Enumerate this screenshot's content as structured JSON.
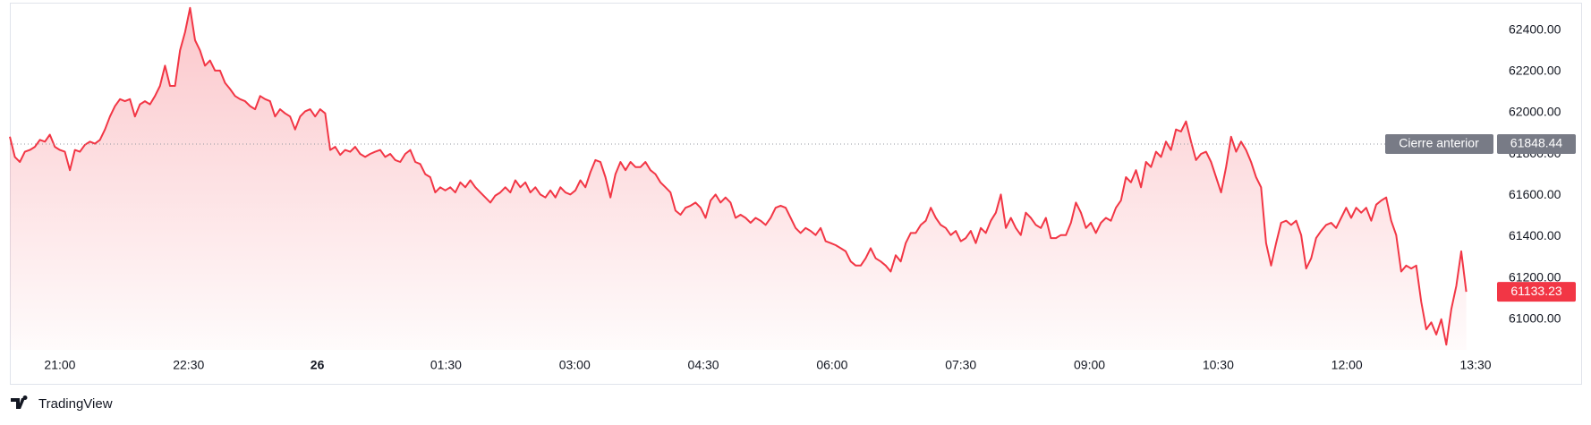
{
  "chart_data": {
    "type": "area",
    "color": "#f23645",
    "x": [
      1225,
      1228.5,
      1232,
      1235.5,
      1239,
      1242.5,
      1246,
      1249.5,
      1253,
      1256.5,
      1260,
      1263.5,
      1267,
      1270.5,
      1274,
      1277.5,
      1281,
      1284.5,
      1288,
      1291.5,
      1295,
      1298.5,
      1302,
      1305.5,
      1309,
      1312.5,
      1316,
      1319.5,
      1323,
      1326.5,
      1330,
      1333.5,
      1337,
      1340.5,
      1344,
      1347.5,
      1351,
      1354.5,
      1358,
      1361.5,
      1365,
      1368.5,
      1372,
      1375.5,
      1379,
      1382.5,
      1386,
      1389.5,
      1393,
      1396.5,
      1400,
      1403.5,
      1407,
      1410.5,
      1414,
      1417.5,
      1421,
      1424.5,
      1428,
      1431.5,
      1435,
      1438.5,
      1442,
      1445.5,
      1449,
      1452.5,
      1456,
      1459.5,
      1463,
      1466.5,
      1470,
      1473.5,
      1477,
      1480.5,
      1484,
      1487.5,
      1491,
      1494.5,
      1498,
      1501.5,
      1505,
      1508.5,
      1512,
      1515.5,
      1519,
      1522.5,
      1526,
      1529.5,
      1533,
      1536.5,
      1540,
      1543.5,
      1547,
      1550.5,
      1554,
      1557.5,
      1561,
      1564.5,
      1568,
      1571.5,
      1575,
      1578.5,
      1582,
      1585.5,
      1589,
      1592.5,
      1596,
      1599.5,
      1603,
      1606.5,
      1610,
      1613.5,
      1617,
      1620.5,
      1624,
      1627.5,
      1631,
      1634.5,
      1638,
      1641.5,
      1645,
      1648.5,
      1652,
      1655.5,
      1659,
      1662.5,
      1666,
      1669.5,
      1673,
      1676.5,
      1680,
      1683.5,
      1687,
      1690.5,
      1694,
      1697.5,
      1701,
      1704.5,
      1708,
      1711.5,
      1715,
      1718.5,
      1722,
      1725.5,
      1729,
      1732.5,
      1736,
      1739.5,
      1743,
      1746.5,
      1750,
      1753.5,
      1757,
      1760.5,
      1764,
      1767.5,
      1771,
      1774.5,
      1778,
      1781.5,
      1785,
      1788.5,
      1792,
      1795.5,
      1799,
      1802.5,
      1806,
      1809.5,
      1813,
      1816.5,
      1820,
      1823.5,
      1827,
      1830.5,
      1834,
      1837.5,
      1841,
      1844.5,
      1848,
      1851.5,
      1855,
      1858.5,
      1862,
      1865.5,
      1869,
      1872.5,
      1876,
      1879.5,
      1883,
      1886.5,
      1890,
      1893.5,
      1897,
      1900.5,
      1904,
      1907.5,
      1911,
      1914.5,
      1918,
      1921.5,
      1925,
      1928.5,
      1932,
      1935.5,
      1939,
      1942.5,
      1946,
      1949.5,
      1953,
      1956.5,
      1960,
      1963.5,
      1967,
      1970.5,
      1974,
      1977.5,
      1981,
      1984.5,
      1988,
      1991.5,
      1995,
      1998.5,
      2002,
      2005.5,
      2009,
      2012.5,
      2016,
      2019.5,
      2023,
      2026.5,
      2030,
      2033.5,
      2037,
      2040.5,
      2044,
      2047.5,
      2051,
      2054.5,
      2058,
      2061.5,
      2065,
      2068.5,
      2072,
      2075.5,
      2079,
      2082.5,
      2086,
      2089.5,
      2093,
      2096.5,
      2100,
      2103.5,
      2107,
      2110.5,
      2114,
      2117.5,
      2121,
      2124.5,
      2128,
      2131.5,
      2135,
      2138.5,
      2142,
      2145.5,
      2149,
      2152.5,
      2156,
      2159.5,
      2163,
      2166.5,
      2170,
      2173.5,
      2177,
      2180.5,
      2184,
      2187.5,
      2191,
      2194.5,
      2198,
      2201.5,
      2205,
      2208.5,
      2212,
      2215.5,
      2219,
      2222.5,
      2226,
      2229.5,
      2233,
      2236.5,
      2240,
      2243.5
    ],
    "values": [
      61884,
      61786,
      61762,
      61811,
      61820,
      61835,
      61869,
      61860,
      61894,
      61835,
      61820,
      61811,
      61722,
      61820,
      61811,
      61845,
      61860,
      61850,
      61869,
      61919,
      61982,
      62032,
      62066,
      62056,
      62066,
      61982,
      62041,
      62056,
      62041,
      62081,
      62130,
      62228,
      62130,
      62130,
      62302,
      62390,
      62508,
      62351,
      62302,
      62228,
      62253,
      62204,
      62204,
      62145,
      62115,
      62081,
      62066,
      62056,
      62032,
      62017,
      62081,
      62066,
      62056,
      61982,
      62017,
      61997,
      61982,
      61919,
      61982,
      62007,
      62017,
      61982,
      62017,
      61997,
      61820,
      61835,
      61796,
      61820,
      61811,
      61835,
      61801,
      61786,
      61801,
      61811,
      61820,
      61786,
      61801,
      61771,
      61762,
      61801,
      61820,
      61762,
      61752,
      61703,
      61688,
      61614,
      61639,
      61624,
      61639,
      61614,
      61663,
      61639,
      61673,
      61639,
      61614,
      61590,
      61565,
      61599,
      61614,
      61639,
      61614,
      61673,
      61639,
      61663,
      61614,
      61639,
      61604,
      61590,
      61624,
      61590,
      61639,
      61614,
      61604,
      61624,
      61673,
      61639,
      61712,
      61771,
      61762,
      61688,
      61590,
      61703,
      61762,
      61722,
      61762,
      61737,
      61737,
      61762,
      61722,
      61703,
      61663,
      61639,
      61614,
      61526,
      61506,
      61540,
      61550,
      61565,
      61540,
      61491,
      61575,
      61604,
      61565,
      61590,
      61565,
      61491,
      61506,
      61491,
      61467,
      61491,
      61477,
      61457,
      61491,
      61540,
      61550,
      61540,
      61491,
      61442,
      61418,
      61442,
      61428,
      61408,
      61442,
      61378,
      61369,
      61359,
      61344,
      61329,
      61280,
      61260,
      61260,
      61295,
      61344,
      61295,
      61280,
      61260,
      61231,
      61310,
      61280,
      61369,
      61418,
      61418,
      61457,
      61477,
      61540,
      61491,
      61457,
      61442,
      61408,
      61428,
      61378,
      61393,
      61428,
      61369,
      61442,
      61418,
      61477,
      61516,
      61604,
      61442,
      61491,
      61442,
      61408,
      61516,
      61491,
      61457,
      61442,
      61491,
      61393,
      61393,
      61408,
      61408,
      61467,
      61565,
      61516,
      61442,
      61467,
      61418,
      61467,
      61491,
      61477,
      61540,
      61575,
      61688,
      61663,
      61722,
      61639,
      61762,
      61737,
      61811,
      61786,
      61860,
      61820,
      61919,
      61909,
      61958,
      61860,
      61771,
      61801,
      61811,
      61762,
      61688,
      61614,
      61737,
      61884,
      61811,
      61860,
      61820,
      61762,
      61688,
      61639,
      61369,
      61260,
      61369,
      61467,
      61477,
      61457,
      61477,
      61408,
      61246,
      61295,
      61393,
      61428,
      61457,
      61467,
      61442,
      61491,
      61540,
      61491,
      61540,
      61516,
      61540,
      61477,
      61555,
      61575,
      61590,
      61477,
      61408,
      61231,
      61260,
      61246,
      61260,
      61084,
      60951,
      60985,
      60926,
      61000,
      60877,
      61049,
      61162,
      61329,
      61133.23
    ],
    "xlim": [
      1225,
      2265
    ],
    "xticks": [
      {
        "value": 1260,
        "label": "21:00"
      },
      {
        "value": 1350,
        "label": "22:30"
      },
      {
        "value": 1440,
        "label": "26"
      },
      {
        "value": 1530,
        "label": "01:30"
      },
      {
        "value": 1620,
        "label": "03:00"
      },
      {
        "value": 1710,
        "label": "04:30"
      },
      {
        "value": 1800,
        "label": "06:00"
      },
      {
        "value": 1890,
        "label": "07:30"
      },
      {
        "value": 1980,
        "label": "09:00"
      },
      {
        "value": 2070,
        "label": "10:30"
      },
      {
        "value": 2160,
        "label": "12:00"
      },
      {
        "value": 2250,
        "label": "13:30"
      }
    ],
    "ylim": [
      60852,
      62533
    ],
    "yticks": [
      {
        "value": 61000,
        "label": "61000.00"
      },
      {
        "value": 61200,
        "label": "61200.00"
      },
      {
        "value": 61400,
        "label": "61400.00"
      },
      {
        "value": 61600,
        "label": "61600.00"
      },
      {
        "value": 61800,
        "label": "61800.00"
      },
      {
        "value": 62000,
        "label": "62000.00"
      },
      {
        "value": 62200,
        "label": "62200.00"
      },
      {
        "value": 62400,
        "label": "62400.00"
      }
    ],
    "grid": false,
    "prev_close": {
      "label": "Cierre anterior",
      "value": 61848.44
    }
  },
  "brand": "TradingView"
}
